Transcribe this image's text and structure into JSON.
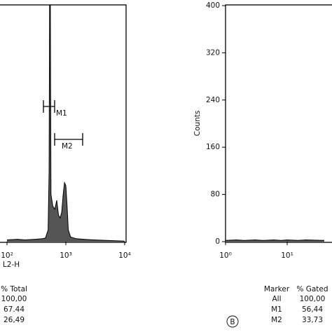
{
  "chart_data": [
    {
      "type": "histogram",
      "x_label": "L2-H",
      "xscale": "log",
      "xlim": [
        100,
        10000
      ],
      "ylim": [
        0,
        400
      ],
      "xticks": [
        {
          "value": 100,
          "label": "10²"
        },
        {
          "value": 1000,
          "label": "10³"
        },
        {
          "value": 10000,
          "label": "10⁴"
        }
      ],
      "x": [
        100,
        150,
        200,
        300,
        400,
        450,
        500,
        520,
        530,
        545,
        560,
        600,
        650,
        700,
        750,
        800,
        850,
        900,
        950,
        1000,
        1050,
        1100,
        1200,
        1500,
        2000,
        3000,
        5000,
        10000
      ],
      "values": [
        3,
        4,
        3,
        4,
        5,
        6,
        20,
        120,
        400,
        400,
        80,
        60,
        55,
        70,
        45,
        40,
        50,
        80,
        100,
        95,
        60,
        20,
        8,
        5,
        4,
        3,
        2,
        1
      ],
      "color": "#000000",
      "fill": "#555555",
      "markers": [
        {
          "name": "M1",
          "range": [
            416,
            645
          ]
        },
        {
          "name": "M2",
          "range": [
            645,
            1930
          ]
        }
      ]
    },
    {
      "type": "histogram",
      "y_label": "Counts",
      "xscale": "log",
      "xlim": [
        1,
        10000
      ],
      "ylim": [
        0,
        400
      ],
      "xticks": [
        {
          "value": 1,
          "label": "10⁰"
        },
        {
          "value": 10,
          "label": "10¹"
        }
      ],
      "yticks": [
        0,
        80,
        160,
        240,
        320,
        400
      ],
      "x": [
        1,
        1.5,
        2,
        3,
        4,
        6,
        8,
        10,
        15,
        20,
        40
      ],
      "values": [
        2,
        3,
        2,
        3,
        2,
        3,
        2,
        3,
        2,
        3,
        2
      ],
      "color": "#000000",
      "fill": "#555555"
    }
  ],
  "tables": [
    {
      "header": [
        "% Total"
      ],
      "rows": [
        [
          "100,00"
        ],
        [
          "67.44"
        ],
        [
          "26,49"
        ]
      ]
    },
    {
      "header": [
        "Marker",
        "% Gated"
      ],
      "rows": [
        [
          "All",
          "100,00"
        ],
        [
          "M1",
          "56,44"
        ],
        [
          "M2",
          "33,73"
        ]
      ]
    }
  ],
  "panel_label": "B"
}
